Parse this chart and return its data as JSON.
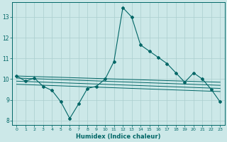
{
  "xlabel": "Humidex (Indice chaleur)",
  "bg_color": "#cce8e8",
  "line_color": "#006666",
  "grid_color": "#aacece",
  "xlim": [
    -0.5,
    23.5
  ],
  "ylim": [
    7.8,
    13.7
  ],
  "yticks": [
    8,
    9,
    10,
    11,
    12,
    13
  ],
  "xticks": [
    0,
    1,
    2,
    3,
    4,
    5,
    6,
    7,
    8,
    9,
    10,
    11,
    12,
    13,
    14,
    15,
    16,
    17,
    18,
    19,
    20,
    21,
    22,
    23
  ],
  "main_series": {
    "x": [
      0,
      1,
      2,
      3,
      4,
      5,
      6,
      7,
      8,
      9,
      10,
      11,
      12,
      13,
      14,
      15,
      16,
      17,
      18,
      19,
      20,
      21,
      22,
      23
    ],
    "y": [
      10.15,
      9.9,
      10.05,
      9.65,
      9.45,
      8.9,
      8.1,
      8.8,
      9.55,
      9.65,
      10.0,
      10.85,
      13.45,
      13.0,
      11.65,
      11.35,
      11.05,
      10.75,
      10.3,
      9.85,
      10.3,
      10.0,
      9.5,
      8.9
    ]
  },
  "ref_lines": [
    {
      "x": [
        0,
        23
      ],
      "y": [
        10.15,
        9.85
      ]
    },
    {
      "x": [
        0,
        23
      ],
      "y": [
        10.05,
        9.7
      ]
    },
    {
      "x": [
        0,
        23
      ],
      "y": [
        9.9,
        9.55
      ]
    },
    {
      "x": [
        0,
        23
      ],
      "y": [
        9.75,
        9.4
      ]
    }
  ]
}
